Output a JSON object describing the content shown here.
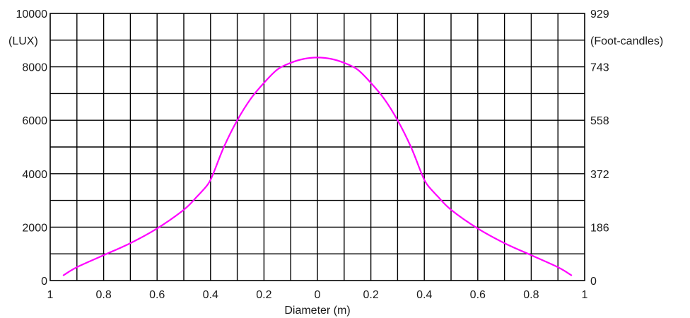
{
  "chart_data": {
    "type": "line",
    "title": "",
    "xlabel": "Diameter (m)",
    "ylabel_left": "(LUX)",
    "ylabel_right": "(Foot-candles)",
    "x_tick_labels": [
      "1",
      "0.8",
      "0.6",
      "0.4",
      "0.2",
      "0",
      "0.2",
      "0.4",
      "0.6",
      "0.8",
      "1"
    ],
    "y_left_ticks": [
      "10000",
      "8000",
      "6000",
      "4000",
      "2000",
      "0"
    ],
    "y_right_ticks": [
      "929",
      "743",
      "558",
      "372",
      "186",
      "0"
    ],
    "xlim": [
      -1,
      1
    ],
    "ylim": [
      0,
      10000
    ],
    "grid": true,
    "grid_columns": 20,
    "grid_rows": 10,
    "line_color": "#ff00ff",
    "series": [
      {
        "x": [
          -0.95,
          -0.9,
          -0.8,
          -0.7,
          -0.6,
          -0.5,
          -0.45,
          -0.41,
          -0.39,
          -0.35,
          -0.3,
          -0.25,
          -0.2,
          -0.15,
          -0.1,
          -0.05,
          0,
          0.05,
          0.1,
          0.15,
          0.2,
          0.25,
          0.3,
          0.35,
          0.39,
          0.41,
          0.45,
          0.5,
          0.6,
          0.7,
          0.8,
          0.9,
          0.95
        ],
        "y": [
          200,
          500,
          950,
          1400,
          1950,
          2650,
          3150,
          3600,
          4000,
          5000,
          6000,
          6800,
          7400,
          7900,
          8150,
          8300,
          8350,
          8300,
          8150,
          7900,
          7400,
          6800,
          6000,
          5000,
          4000,
          3600,
          3150,
          2650,
          1950,
          1400,
          950,
          500,
          200
        ]
      }
    ]
  }
}
